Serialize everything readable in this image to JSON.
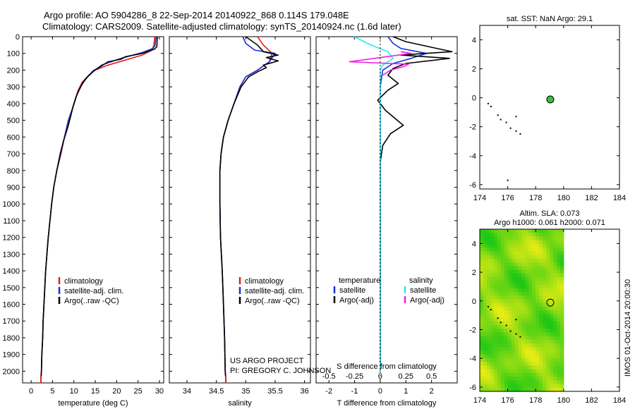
{
  "titles": {
    "line1": "Argo profile: AO 5904286_8 22-Sep-2014 20140922_868 0.114S 179.048E",
    "line2": "Climatology: CARS2009. Satellite-adjusted climatology: synTS_20140924.nc (1.6d later)"
  },
  "colors": {
    "climatology": "#e02020",
    "satellite": "#1a2fd6",
    "argo": "#000000",
    "sal_satellite": "#2ee6f0",
    "sal_argo": "#f020e0",
    "marker_green": "#3fbf3f"
  },
  "chart_data": [
    {
      "type": "line",
      "panel": "temperature",
      "xlabel": "temperature (deg C)",
      "xlim": [
        -2,
        31
      ],
      "xticks": [
        0,
        5,
        10,
        15,
        20,
        25,
        30
      ],
      "ylim": [
        0,
        2070
      ],
      "yticks": [
        0,
        100,
        200,
        300,
        400,
        500,
        600,
        700,
        800,
        900,
        1000,
        1100,
        1200,
        1300,
        1400,
        1500,
        1600,
        1700,
        1800,
        1900,
        2000
      ],
      "legend": [
        "climatology",
        "satellite-adj. clim.",
        "Argo(..raw -QC)"
      ],
      "series": [
        {
          "name": "climatology",
          "color_key": "climatology",
          "points": [
            [
              28.9,
              0
            ],
            [
              28.7,
              50
            ],
            [
              28.3,
              80
            ],
            [
              26,
              110
            ],
            [
              22,
              140
            ],
            [
              18,
              170
            ],
            [
              15,
              200
            ],
            [
              13.5,
              230
            ],
            [
              12,
              270
            ],
            [
              11,
              320
            ],
            [
              10,
              400
            ],
            [
              8.8,
              500
            ],
            [
              7.8,
              600
            ],
            [
              7,
              700
            ],
            [
              6,
              800
            ],
            [
              5.3,
              900
            ],
            [
              4.8,
              1000
            ],
            [
              4.4,
              1100
            ],
            [
              4,
              1200
            ],
            [
              3.7,
              1300
            ],
            [
              3.4,
              1400
            ],
            [
              3.2,
              1500
            ],
            [
              3,
              1600
            ],
            [
              2.8,
              1700
            ],
            [
              2.7,
              1800
            ],
            [
              2.5,
              1900
            ],
            [
              2.4,
              2000
            ],
            [
              2.3,
              2050
            ]
          ]
        },
        {
          "name": "satellite",
          "color_key": "satellite",
          "points": [
            [
              29.2,
              0
            ],
            [
              29,
              50
            ],
            [
              28.5,
              70
            ],
            [
              26,
              95
            ],
            [
              21,
              130
            ],
            [
              16.5,
              170
            ],
            [
              14.5,
              210
            ],
            [
              12.8,
              250
            ],
            [
              11.8,
              290
            ],
            [
              10.8,
              340
            ],
            [
              9.8,
              420
            ],
            [
              8.7,
              500
            ],
            [
              7.8,
              600
            ],
            [
              6.9,
              700
            ],
            [
              6,
              800
            ],
            [
              5.3,
              900
            ],
            [
              4.8,
              1000
            ],
            [
              4.4,
              1100
            ],
            [
              4,
              1200
            ],
            [
              3.7,
              1300
            ],
            [
              3.4,
              1400
            ],
            [
              3.2,
              1500
            ],
            [
              3,
              1600
            ],
            [
              2.8,
              1700
            ],
            [
              2.7,
              1800
            ],
            [
              2.5,
              1900
            ],
            [
              2.4,
              2000
            ],
            [
              2.3,
              2050
            ]
          ]
        },
        {
          "name": "argo",
          "color_key": "argo",
          "points": [
            [
              29.5,
              0
            ],
            [
              29.4,
              60
            ],
            [
              28.8,
              75
            ],
            [
              26,
              100
            ],
            [
              22,
              120
            ],
            [
              21,
              135
            ],
            [
              18,
              150
            ],
            [
              16.5,
              175
            ],
            [
              14.5,
              205
            ],
            [
              13.2,
              240
            ],
            [
              12,
              280
            ],
            [
              11.2,
              320
            ],
            [
              10.5,
              360
            ],
            [
              9.8,
              420
            ],
            [
              9.2,
              480
            ],
            [
              8.6,
              540
            ],
            [
              7.6,
              620
            ],
            [
              6.8,
              700
            ],
            [
              6,
              800
            ],
            [
              5.3,
              900
            ],
            [
              4.8,
              1000
            ],
            [
              4.4,
              1100
            ],
            [
              4,
              1200
            ],
            [
              3.7,
              1300
            ],
            [
              3.4,
              1400
            ],
            [
              3.2,
              1500
            ],
            [
              3,
              1600
            ],
            [
              2.8,
              1700
            ],
            [
              2.7,
              1800
            ],
            [
              2.5,
              1900
            ],
            [
              2.4,
              2000
            ],
            [
              2.3,
              2040
            ]
          ]
        }
      ]
    },
    {
      "type": "line",
      "panel": "salinity",
      "xlabel": "salinity",
      "xlim": [
        33.7,
        36.1
      ],
      "xticks": [
        34,
        34.5,
        35,
        35.5,
        36
      ],
      "ylim": [
        0,
        2070
      ],
      "legend": [
        "climatology",
        "satellite-adj. clim.",
        "Argo(..raw -QC)"
      ],
      "annotation_lines": [
        "US ARGO PROJECT",
        "PI: GREGORY C. JOHNSON"
      ],
      "series": [
        {
          "name": "climatology",
          "color_key": "climatology",
          "points": [
            [
              35.2,
              0
            ],
            [
              35.3,
              50
            ],
            [
              35.45,
              100
            ],
            [
              35.4,
              150
            ],
            [
              35.2,
              200
            ],
            [
              35,
              240
            ],
            [
              34.9,
              300
            ],
            [
              34.8,
              400
            ],
            [
              34.7,
              500
            ],
            [
              34.62,
              600
            ],
            [
              34.58,
              700
            ],
            [
              34.56,
              800
            ],
            [
              34.56,
              1000
            ],
            [
              34.57,
              1200
            ],
            [
              34.6,
              1400
            ],
            [
              34.62,
              1600
            ],
            [
              34.64,
              1800
            ],
            [
              34.65,
              2000
            ],
            [
              34.66,
              2050
            ]
          ]
        },
        {
          "name": "satellite",
          "color_key": "satellite",
          "points": [
            [
              34.95,
              0
            ],
            [
              35,
              40
            ],
            [
              35.15,
              80
            ],
            [
              35.5,
              100
            ],
            [
              35.4,
              150
            ],
            [
              35.2,
              200
            ],
            [
              35,
              240
            ],
            [
              34.9,
              300
            ],
            [
              34.8,
              400
            ],
            [
              34.7,
              500
            ],
            [
              34.62,
              600
            ],
            [
              34.58,
              700
            ],
            [
              34.56,
              800
            ],
            [
              34.56,
              1000
            ],
            [
              34.57,
              1200
            ],
            [
              34.6,
              1400
            ],
            [
              34.62,
              1600
            ],
            [
              34.64,
              1800
            ],
            [
              34.65,
              2000
            ],
            [
              34.66,
              2050
            ]
          ]
        },
        {
          "name": "argo",
          "color_key": "argo",
          "points": [
            [
              35,
              0
            ],
            [
              35.2,
              50
            ],
            [
              35.3,
              90
            ],
            [
              35.55,
              110
            ],
            [
              35.35,
              125
            ],
            [
              35.55,
              145
            ],
            [
              35.3,
              170
            ],
            [
              35.35,
              185
            ],
            [
              35.2,
              210
            ],
            [
              35.05,
              240
            ],
            [
              34.92,
              300
            ],
            [
              34.8,
              400
            ],
            [
              34.7,
              500
            ],
            [
              34.62,
              600
            ],
            [
              34.58,
              700
            ],
            [
              34.56,
              800
            ],
            [
              34.56,
              1000
            ],
            [
              34.57,
              1200
            ],
            [
              34.6,
              1400
            ],
            [
              34.62,
              1600
            ],
            [
              34.64,
              1800
            ],
            [
              34.65,
              2000
            ],
            [
              34.66,
              2040
            ]
          ]
        }
      ]
    },
    {
      "type": "line",
      "panel": "difference",
      "xlabel": "T difference from climatology",
      "xlabel_top": "S difference from climatology",
      "xlim": [
        -2.5,
        3
      ],
      "xticks": [
        -2,
        -1,
        0,
        1,
        2
      ],
      "s_ticks": [
        "-0.5",
        "-0.25",
        "0",
        "0.25",
        "0.5"
      ],
      "ylim": [
        0,
        2070
      ],
      "legend_temperature": {
        "heading": "temperature",
        "items": [
          "satellite",
          "Argo(-adj)"
        ]
      },
      "legend_salinity": {
        "heading": "salinity",
        "items": [
          "satellite",
          "Argo(-adj)"
        ]
      },
      "series": [
        {
          "name": "T satellite",
          "color_key": "satellite",
          "points": [
            [
              0.3,
              0
            ],
            [
              0.5,
              40
            ],
            [
              0.8,
              70
            ],
            [
              1.8,
              100
            ],
            [
              1.2,
              130
            ],
            [
              0.5,
              160
            ],
            [
              0.1,
              200
            ],
            [
              0,
              300
            ],
            [
              0,
              500
            ],
            [
              0,
              1000
            ],
            [
              0,
              1500
            ],
            [
              0,
              2000
            ]
          ]
        },
        {
          "name": "T Argo",
          "color_key": "argo",
          "points": [
            [
              0.5,
              0
            ],
            [
              1,
              30
            ],
            [
              2.2,
              70
            ],
            [
              2.8,
              90
            ],
            [
              0.8,
              110
            ],
            [
              2.7,
              130
            ],
            [
              1,
              160
            ],
            [
              0.5,
              190
            ],
            [
              0.3,
              230
            ],
            [
              0.7,
              280
            ],
            [
              0.3,
              320
            ],
            [
              -0.1,
              380
            ],
            [
              0.2,
              440
            ],
            [
              0.9,
              530
            ],
            [
              0.4,
              580
            ],
            [
              0.1,
              650
            ],
            [
              0,
              750
            ],
            [
              0,
              1000
            ],
            [
              0,
              1500
            ],
            [
              0,
              2000
            ]
          ]
        },
        {
          "name": "S satellite",
          "color_key": "sal_satellite",
          "points": [
            [
              -1,
              0
            ],
            [
              -0.5,
              40
            ],
            [
              -0.2,
              60
            ],
            [
              0.3,
              90
            ],
            [
              0.5,
              130
            ],
            [
              0.1,
              170
            ],
            [
              0,
              200
            ],
            [
              0,
              300
            ],
            [
              0,
              600
            ],
            [
              0,
              1000
            ],
            [
              0,
              1500
            ],
            [
              0,
              2000
            ]
          ]
        },
        {
          "name": "S Argo",
          "color_key": "sal_argo",
          "points": [
            [
              0.8,
              90
            ],
            [
              1.2,
              100
            ],
            [
              -1.2,
              150
            ],
            [
              1.1,
              165
            ],
            [
              0.9,
              180
            ],
            [
              0.4,
              200
            ],
            [
              0.1,
              230
            ]
          ]
        }
      ]
    },
    {
      "type": "scatter",
      "panel": "sst_map",
      "title": "sat. SST: NaN Argo: 29.1",
      "xlim": [
        174,
        184
      ],
      "ylim": [
        -6.3,
        5
      ],
      "xticks": [
        174,
        176,
        178,
        180,
        182,
        184
      ],
      "yticks": [
        4,
        2,
        0,
        -2,
        -4,
        -6
      ],
      "argo_position": [
        179.048,
        -0.114
      ],
      "track": [
        [
          174.6,
          -0.4
        ],
        [
          174.8,
          -0.6
        ],
        [
          175.3,
          -1.2
        ],
        [
          175.5,
          -1.5
        ],
        [
          175.9,
          -1.7
        ],
        [
          176.2,
          -2.1
        ],
        [
          176.6,
          -1.3
        ],
        [
          176.6,
          -2.3
        ],
        [
          176.9,
          -2.5
        ],
        [
          176,
          -5.7
        ]
      ]
    },
    {
      "type": "heatmap",
      "panel": "sla_map",
      "title1": "Altim. SLA: 0.073",
      "title2": "Argo h1000: 0.061 h2000: 0.071",
      "xlim": [
        174,
        184
      ],
      "ylim": [
        -6.3,
        5
      ],
      "xticks": [
        174,
        176,
        178,
        180,
        182,
        184
      ],
      "yticks": [
        4,
        2,
        0,
        -2,
        -4,
        -6
      ],
      "data_xmax": 180,
      "argo_position": [
        179.048,
        -0.114
      ],
      "track": [
        [
          174.6,
          -0.4
        ],
        [
          174.8,
          -0.6
        ],
        [
          175.3,
          -1.2
        ],
        [
          175.5,
          -1.5
        ],
        [
          175.9,
          -1.7
        ],
        [
          176.2,
          -2.1
        ],
        [
          176.6,
          -1.3
        ],
        [
          176.6,
          -2.3
        ],
        [
          176.9,
          -2.5
        ]
      ]
    }
  ],
  "imos_stamp": "IMOS 01-Oct-2014 20:00:30"
}
